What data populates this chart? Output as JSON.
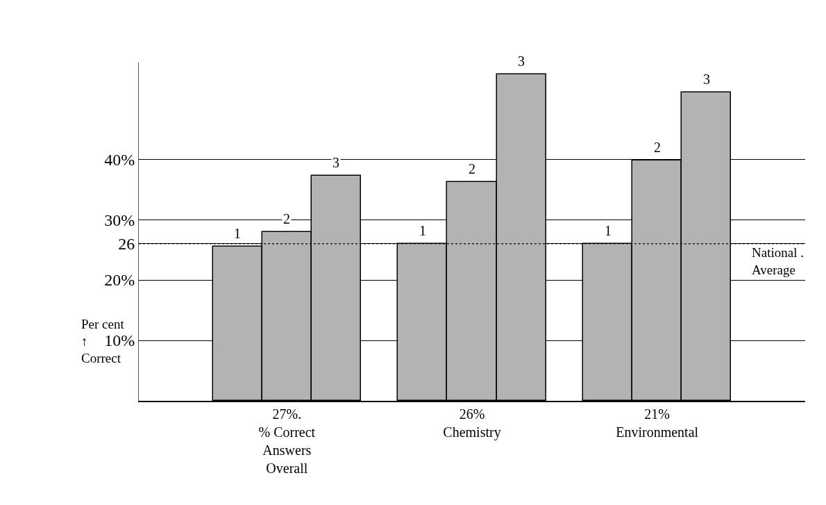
{
  "chart_data": {
    "type": "bar",
    "categories": [
      "27%.\n% Correct\nAnswers\nOverall",
      "26%\nChemistry",
      "21%\nEnvironmental"
    ],
    "series": [
      {
        "name": "1",
        "color": "#b3b3b3",
        "values": [
          25.5,
          26,
          26
        ]
      },
      {
        "name": "2",
        "color": "#b3b3b3",
        "values": [
          28,
          36.2,
          39.8
        ]
      },
      {
        "name": "3",
        "color": "#b3b3b3",
        "values": [
          37.3,
          54,
          51
        ]
      }
    ],
    "ylabel": "Per cent\n↑\nCorrect",
    "ylim": [
      0,
      56
    ],
    "yticks": [
      {
        "value": 10,
        "label": "10%"
      },
      {
        "value": 20,
        "label": "20%"
      },
      {
        "value": 26,
        "label": "26"
      },
      {
        "value": 30,
        "label": "30%"
      },
      {
        "value": 40,
        "label": "40%"
      }
    ],
    "ref_lines": [
      {
        "axis": "y",
        "value": 26,
        "label": "National .\nAverage",
        "color": "#000000",
        "line_style": "dotted"
      }
    ],
    "grid": "y",
    "legend": false
  }
}
